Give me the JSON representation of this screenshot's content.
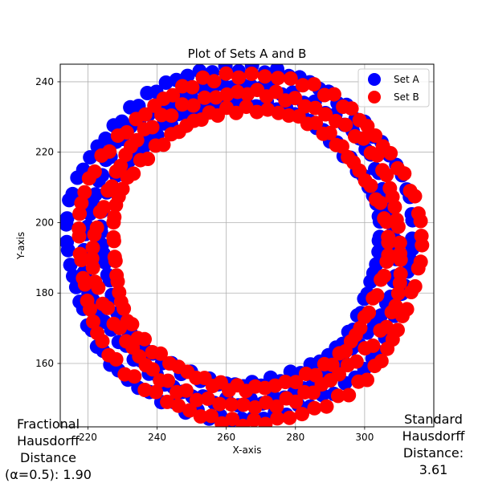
{
  "chart_data": {
    "type": "scatter",
    "title": "Plot of Sets A and B",
    "xlabel": "X-axis",
    "ylabel": "Y-axis",
    "xlim": [
      212,
      320
    ],
    "ylim": [
      142,
      245
    ],
    "xticks": [
      220,
      240,
      260,
      280,
      300
    ],
    "yticks": [
      160,
      180,
      200,
      220,
      240
    ],
    "grid": true,
    "legend_position": "top-right",
    "series": [
      {
        "name": "Set A",
        "color": "#0000ff",
        "shape": "ring",
        "center": [
          264.0,
          194.0
        ],
        "radius": 45.0,
        "thickness": 6.5
      },
      {
        "name": "Set B",
        "color": "#ff0000",
        "shape": "ring",
        "center": [
          266.5,
          192.5
        ],
        "radius": 44.5,
        "thickness": 6.5
      }
    ]
  },
  "annotations": {
    "fractional": "Fractional\nHausdorff\nDistance\n(α=0.5): 1.90",
    "standard": "Standard\nHausdorff\nDistance:\n3.61"
  }
}
